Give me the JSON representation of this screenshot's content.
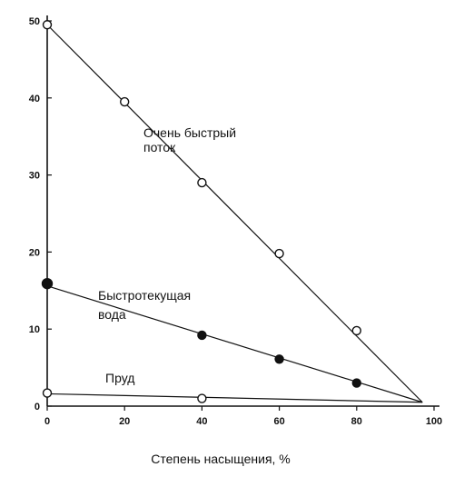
{
  "chart_data": {
    "type": "scatter",
    "title": "",
    "xlabel": "Степень насыщения, %",
    "ylabel": "",
    "xlim": [
      0,
      100
    ],
    "ylim": [
      0,
      50
    ],
    "x_ticks": [
      0,
      20,
      40,
      60,
      80,
      100
    ],
    "y_ticks": [
      0,
      10,
      20,
      30,
      40,
      50
    ],
    "grid": false,
    "series": [
      {
        "label": [
          "Очень быстрый",
          "поток"
        ],
        "marker": "open-circle",
        "points": [
          [
            0,
            49.5
          ],
          [
            20,
            39.5
          ],
          [
            40,
            29
          ],
          [
            60,
            19.8
          ],
          [
            80,
            9.8
          ]
        ],
        "fit_line": [
          [
            0,
            49.5
          ],
          [
            97,
            0.5
          ]
        ]
      },
      {
        "label": [
          "Быстротекущая",
          "вода"
        ],
        "marker": "filled-circle",
        "points": [
          [
            0,
            15.9
          ],
          [
            40,
            9.2
          ],
          [
            60,
            6.1
          ],
          [
            80,
            3
          ]
        ],
        "fit_line": [
          [
            0,
            15.6
          ],
          [
            97,
            0.5
          ]
        ]
      },
      {
        "label": [
          "Пруд"
        ],
        "marker": "open-circle",
        "points": [
          [
            0,
            1.7
          ],
          [
            40,
            1
          ]
        ],
        "fit_line": [
          [
            0,
            1.6
          ],
          [
            97,
            0.5
          ]
        ]
      }
    ]
  }
}
